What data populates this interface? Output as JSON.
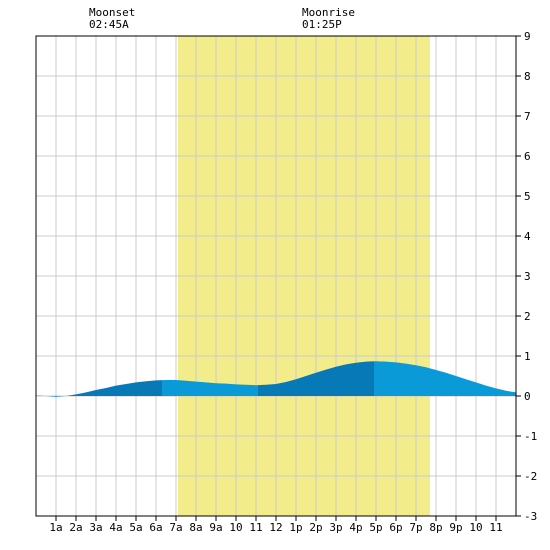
{
  "chart_data": {
    "type": "area",
    "annotations": [
      {
        "label": "Moonset",
        "time": "02:45A",
        "hour": 2.75
      },
      {
        "label": "Moonrise",
        "time": "01:25P",
        "hour": 13.42
      }
    ],
    "daylight": {
      "start_hour": 7.1,
      "end_hour": 19.7
    },
    "x_tick_labels": [
      "1a",
      "2a",
      "3a",
      "4a",
      "5a",
      "6a",
      "7a",
      "8a",
      "9a",
      "10",
      "11",
      "12",
      "1p",
      "2p",
      "3p",
      "4p",
      "5p",
      "6p",
      "7p",
      "8p",
      "9p",
      "10",
      "11"
    ],
    "x_range": [
      0,
      24
    ],
    "y_range": [
      -3,
      9
    ],
    "y_ticks": [
      9,
      8,
      7,
      6,
      5,
      4,
      3,
      2,
      1,
      0,
      -1,
      -2,
      -3
    ],
    "grid": true,
    "series": [
      {
        "x": [
          0,
          0.5,
          1,
          1.5,
          2,
          2.5,
          3,
          3.5,
          4,
          4.5,
          5,
          5.5,
          6,
          6.5,
          7,
          7.5,
          8,
          8.5,
          9,
          9.5,
          10,
          10.5,
          11,
          11.5,
          12,
          12.5,
          13,
          13.5,
          14,
          14.5,
          15,
          15.5,
          16,
          16.5,
          17,
          17.5,
          18,
          18.5,
          19,
          19.5,
          20,
          20.5,
          21,
          21.5,
          22,
          22.5,
          23,
          23.5,
          24
        ],
        "values": [
          0.01,
          0.0,
          -0.02,
          0.0,
          0.04,
          0.09,
          0.15,
          0.2,
          0.26,
          0.3,
          0.34,
          0.37,
          0.39,
          0.4,
          0.4,
          0.38,
          0.36,
          0.34,
          0.32,
          0.31,
          0.29,
          0.28,
          0.27,
          0.28,
          0.3,
          0.35,
          0.42,
          0.5,
          0.58,
          0.66,
          0.73,
          0.79,
          0.83,
          0.86,
          0.87,
          0.86,
          0.84,
          0.81,
          0.77,
          0.72,
          0.65,
          0.58,
          0.5,
          0.42,
          0.34,
          0.26,
          0.19,
          0.13,
          0.09
        ]
      }
    ],
    "colors": {
      "daylight": "#f2ec8a",
      "fill_light": "#0a9ad8",
      "fill_dark": "#0679b6",
      "grid": "#cccccc",
      "background": "#ffffff",
      "border": "#000000"
    }
  }
}
